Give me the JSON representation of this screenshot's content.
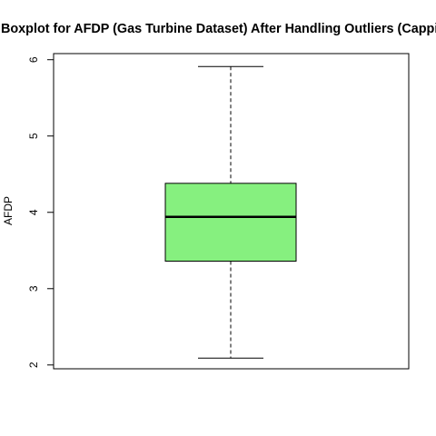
{
  "chart_data": {
    "type": "boxplot",
    "title": "Boxplot for AFDP (Gas Turbine Dataset) After Handling Outliers (Capping)",
    "xlabel": "",
    "ylabel": "AFDP",
    "ylim": [
      1.95,
      6.08
    ],
    "yticks": [
      2,
      3,
      4,
      5,
      6
    ],
    "box_color": "#86F07F",
    "series": [
      {
        "whisker_low": 2.09,
        "q1": 3.36,
        "median": 3.94,
        "q3": 4.38,
        "whisker_high": 5.91
      }
    ],
    "grid": false,
    "legend": "none"
  }
}
